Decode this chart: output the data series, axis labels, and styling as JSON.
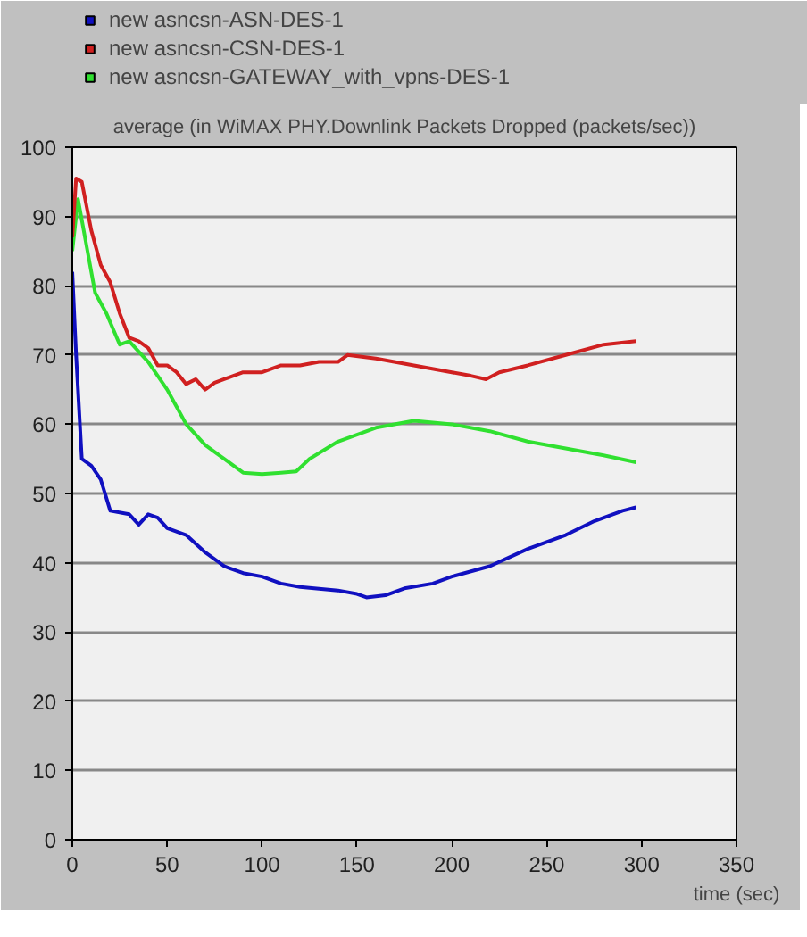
{
  "chart_data": {
    "type": "line",
    "title": "average (in WiMAX PHY.Downlink Packets Dropped (packets/sec))",
    "xlabel": "time (sec)",
    "xlim": [
      0,
      350
    ],
    "ylim": [
      0,
      100
    ],
    "xticks": [
      0,
      50,
      100,
      150,
      200,
      250,
      300,
      350
    ],
    "yticks": [
      0,
      10,
      20,
      30,
      40,
      50,
      60,
      70,
      80,
      90,
      100
    ],
    "grid": "y",
    "legend": "top left",
    "marker": "none",
    "line_style": "solid",
    "series": [
      {
        "name": "new asncsn-ASN-DES-1",
        "color": "#1010c0",
        "x": [
          0,
          2,
          5,
          10,
          15,
          20,
          30,
          35,
          40,
          45,
          50,
          60,
          70,
          80,
          90,
          100,
          110,
          120,
          140,
          150,
          155,
          165,
          175,
          190,
          200,
          220,
          240,
          260,
          275,
          290,
          297
        ],
        "values": [
          82,
          70,
          55,
          54,
          52,
          47.5,
          47,
          45.5,
          47,
          46.5,
          45,
          44,
          41.5,
          39.5,
          38.5,
          38,
          37,
          36.5,
          36,
          35.5,
          35,
          35.3,
          36.3,
          37,
          38,
          39.5,
          42,
          44,
          46,
          47.5,
          48
        ]
      },
      {
        "name": "new asncsn-CSN-DES-1",
        "color": "#d02020",
        "x": [
          0,
          2,
          5,
          10,
          15,
          20,
          25,
          30,
          35,
          40,
          45,
          50,
          55,
          60,
          65,
          70,
          75,
          80,
          90,
          100,
          110,
          120,
          130,
          140,
          145,
          160,
          180,
          200,
          210,
          218,
          225,
          240,
          260,
          280,
          297
        ],
        "values": [
          87,
          95.5,
          95,
          88,
          83,
          80.5,
          76,
          72.5,
          72,
          71,
          68.5,
          68.5,
          67.5,
          65.8,
          66.5,
          65,
          66,
          66.5,
          67.5,
          67.5,
          68.5,
          68.5,
          69,
          69,
          70,
          69.5,
          68.5,
          67.5,
          67,
          66.5,
          67.5,
          68.5,
          70,
          71.5,
          72
        ]
      },
      {
        "name": "new asncsn-GATEWAY_with_vpns-DES-1",
        "color": "#30e030",
        "x": [
          0,
          3,
          8,
          12,
          18,
          25,
          30,
          40,
          50,
          55,
          60,
          70,
          80,
          90,
          100,
          110,
          118,
          125,
          140,
          160,
          180,
          200,
          220,
          240,
          260,
          280,
          297
        ],
        "values": [
          85,
          92.5,
          85,
          79,
          76,
          71.5,
          72,
          69,
          65,
          62.5,
          60,
          57,
          55,
          53,
          52.8,
          53,
          53.2,
          55,
          57.5,
          59.5,
          60.5,
          60,
          59,
          57.5,
          56.5,
          55.5,
          54.5
        ]
      }
    ]
  }
}
